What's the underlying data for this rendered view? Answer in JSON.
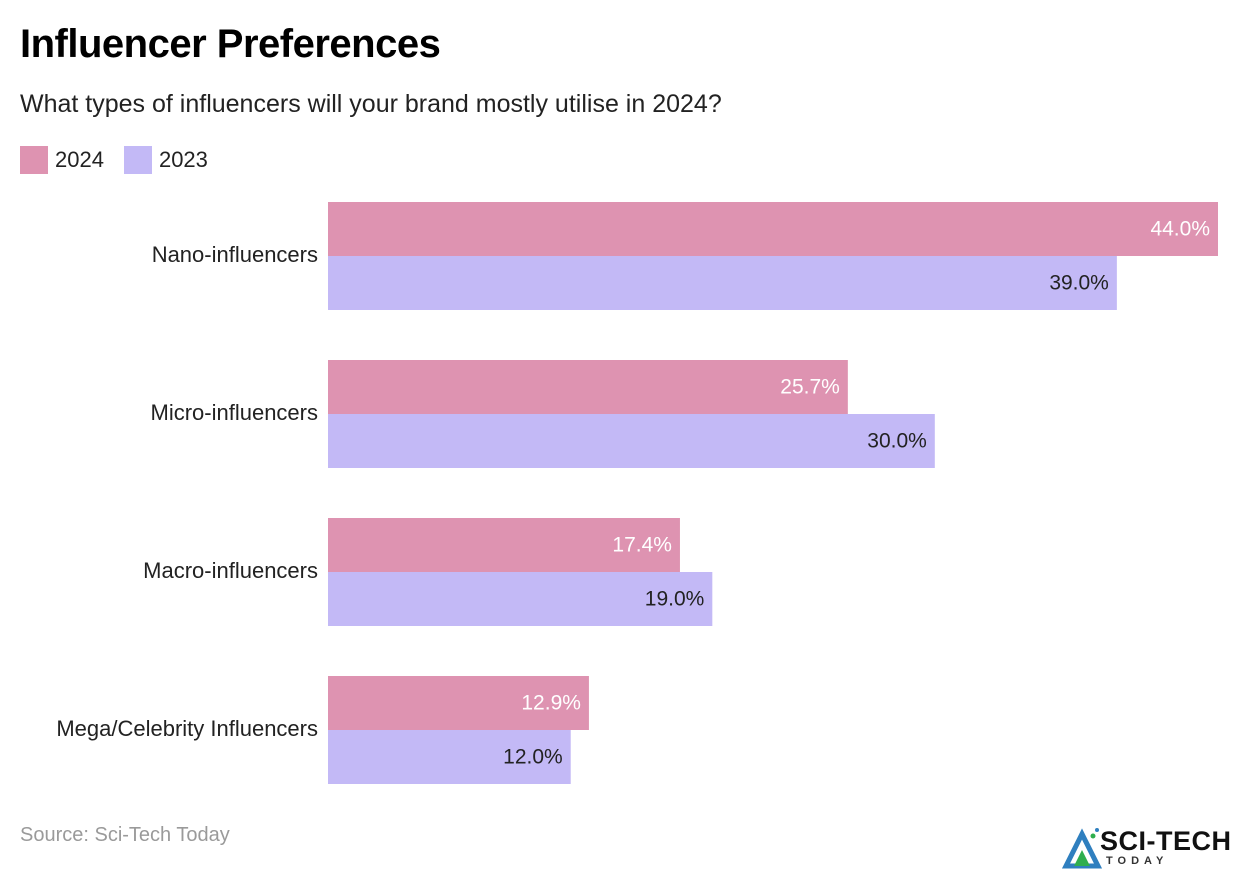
{
  "chart_data": {
    "type": "bar",
    "orientation": "horizontal",
    "title": "Influencer Preferences",
    "subtitle": "What types of influencers will your brand mostly utilise in 2024?",
    "categories": [
      "Nano-influencers",
      "Micro-influencers",
      "Macro-influencers",
      "Mega/Celebrity Influencers"
    ],
    "series": [
      {
        "name": "2024",
        "color": "#de93b1",
        "label_color": "#ffffff",
        "values": [
          44.0,
          25.7,
          17.4,
          12.9
        ],
        "labels": [
          "44.0%",
          "25.7%",
          "17.4%",
          "12.9%"
        ]
      },
      {
        "name": "2023",
        "color": "#c3b9f6",
        "label_color": "#222222",
        "values": [
          39.0,
          30.0,
          19.0,
          12.0
        ],
        "labels": [
          "39.0%",
          "30.0%",
          "19.0%",
          "12.0%"
        ]
      }
    ],
    "xlim": [
      0,
      44
    ],
    "grid": false,
    "legend_position": "top-left"
  },
  "source": "Source: Sci-Tech Today",
  "logo": {
    "name": "SCI-TECH",
    "tagline": "TODAY"
  }
}
